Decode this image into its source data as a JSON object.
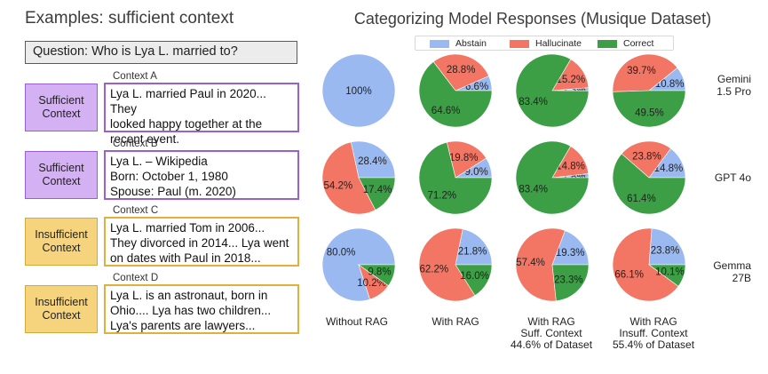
{
  "examples": {
    "title": "Examples: sufficient context",
    "question": "Question: Who is Lya L. married to?",
    "contexts": [
      {
        "label": "Context A",
        "tag": "Sufficient\nContext",
        "kind": "suff",
        "text": "Lya L. married Paul in 2020... They\nlooked happy together at the\nrecent event."
      },
      {
        "label": "Context B",
        "tag": "Sufficient\nContext",
        "kind": "suff",
        "text": "Lya L. – Wikipedia\nBorn: October 1, 1980\nSpouse: Paul (m. 2020)"
      },
      {
        "label": "Context C",
        "tag": "Insufficient\nContext",
        "kind": "insuff",
        "text": "Lya L. married Tom in 2006...\nThey divorced in 2014... Lya went\non dates with Paul in 2018..."
      },
      {
        "label": "Context D",
        "tag": "Insufficient\nContext",
        "kind": "insuff",
        "text": "Lya L. is an astronaut, born in\nOhio.... Lya has two children...\nLya's parents are lawyers..."
      }
    ]
  },
  "colors": {
    "Abstain": "#9ab9f0",
    "Hallucinate": "#f37563",
    "Correct": "#3c9e45"
  },
  "chart_data": {
    "type": "pie",
    "title": "Categorizing Model Responses (Musique Dataset)",
    "legend": {
      "placement": "top",
      "entries": [
        "Abstain",
        "Hallucinate",
        "Correct"
      ]
    },
    "columns": [
      "Without RAG",
      "With RAG",
      "With RAG\nSuff. Context\n44.6% of Dataset",
      "With RAG\nInsuff. Context\n55.4% of Dataset"
    ],
    "rows": [
      "Gemini\n1.5 Pro",
      "GPT 4o",
      "Gemma\n27B"
    ],
    "pies": [
      [
        {
          "Abstain": 100,
          "Hallucinate": 0,
          "Correct": 0,
          "labels": [
            "100%"
          ]
        },
        {
          "Abstain": 6.6,
          "Hallucinate": 28.8,
          "Correct": 64.6,
          "labels": [
            "6.6%",
            "28.8%",
            "64.6%"
          ]
        },
        {
          "Abstain": 1.3,
          "Hallucinate": 15.2,
          "Correct": 83.4,
          "labels": [
            "1.3%",
            "15.2%",
            "83.4%"
          ]
        },
        {
          "Abstain": 10.8,
          "Hallucinate": 39.7,
          "Correct": 49.5,
          "labels": [
            "10.8%",
            "39.7%",
            "49.5%"
          ]
        }
      ],
      [
        {
          "Abstain": 28.4,
          "Hallucinate": 54.2,
          "Correct": 17.4,
          "labels": [
            "28.4%",
            "54.2%",
            "17.4%"
          ]
        },
        {
          "Abstain": 9.0,
          "Hallucinate": 19.8,
          "Correct": 71.2,
          "labels": [
            "9.0%",
            "19.8%",
            "71.2%"
          ]
        },
        {
          "Abstain": 1.8,
          "Hallucinate": 14.8,
          "Correct": 83.4,
          "labels": [
            "1.8%",
            "14.8%",
            "83.4%"
          ]
        },
        {
          "Abstain": 14.8,
          "Hallucinate": 23.8,
          "Correct": 61.4,
          "labels": [
            "14.8%",
            "23.8%",
            "61.4%"
          ]
        }
      ],
      [
        {
          "Abstain": 80.0,
          "Hallucinate": 10.2,
          "Correct": 9.8,
          "labels": [
            "80.0%",
            "10.2%",
            "9.8%"
          ]
        },
        {
          "Abstain": 21.8,
          "Hallucinate": 62.2,
          "Correct": 16.0,
          "labels": [
            "21.8%",
            "62.2%",
            "16.0%"
          ]
        },
        {
          "Abstain": 19.3,
          "Hallucinate": 57.4,
          "Correct": 23.3,
          "labels": [
            "19.3%",
            "57.4%",
            "23.3%"
          ]
        },
        {
          "Abstain": 23.8,
          "Hallucinate": 66.1,
          "Correct": 10.1,
          "labels": [
            "23.8%",
            "66.1%",
            "10.1%"
          ]
        }
      ]
    ]
  }
}
